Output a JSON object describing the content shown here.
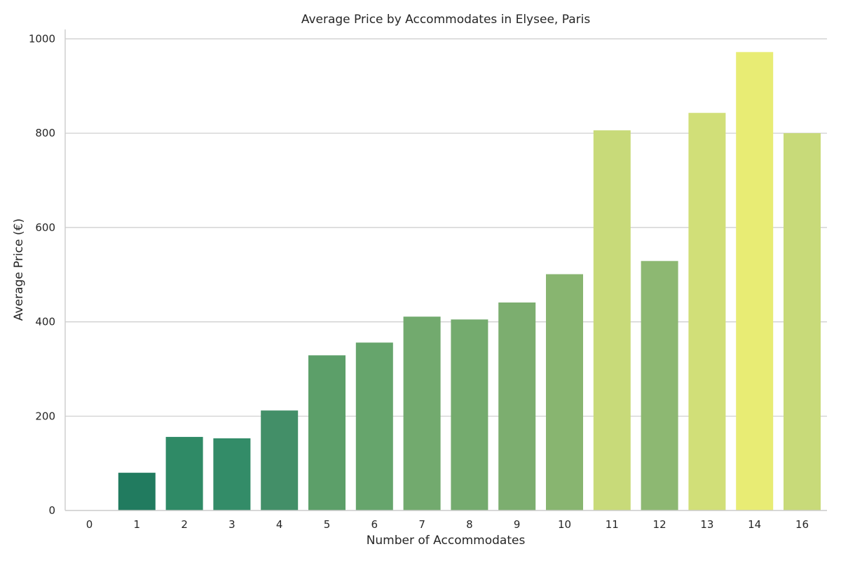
{
  "chart_data": {
    "type": "bar",
    "title": "Average Price by Accommodates in Elysee, Paris",
    "xlabel": "Number of Accommodates",
    "ylabel": "Average Price (€)",
    "categories": [
      "0",
      "1",
      "2",
      "3",
      "4",
      "5",
      "6",
      "7",
      "8",
      "9",
      "10",
      "11",
      "12",
      "13",
      "14",
      "16"
    ],
    "values": [
      0,
      80,
      156,
      153,
      212,
      329,
      356,
      411,
      405,
      441,
      501,
      806,
      529,
      843,
      972,
      800
    ],
    "bar_colors": [
      "#1a7a5e",
      "#217b5f",
      "#2f8a66",
      "#338c68",
      "#438f68",
      "#5c9f69",
      "#66a56c",
      "#72aa6e",
      "#74ab6e",
      "#7cae6f",
      "#88b570",
      "#c8da79",
      "#8db872",
      "#d1df78",
      "#e8ec74",
      "#c8da79"
    ],
    "ylim": [
      0,
      1020
    ],
    "yticks": [
      0,
      200,
      400,
      600,
      800,
      1000
    ],
    "grid": "horizontal"
  }
}
